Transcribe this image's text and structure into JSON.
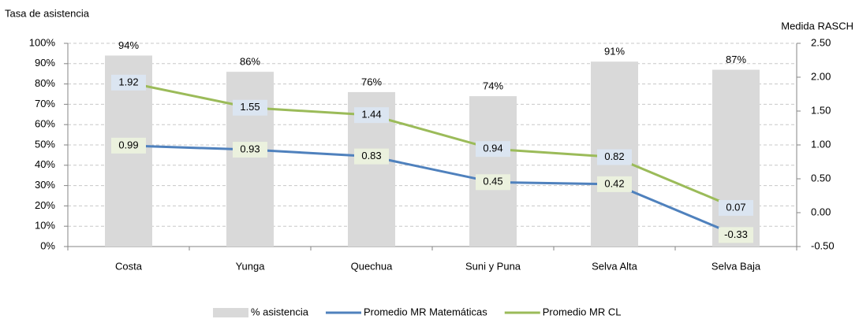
{
  "chart_data": {
    "type": "bar",
    "y_label": "Tasa de asistencia",
    "y2_label": "Medida RASCH",
    "categories": [
      "Costa",
      "Yunga",
      "Quechua",
      "Suni y Puna",
      "Selva Alta",
      "Selva Baja"
    ],
    "series": [
      {
        "name": "% asistencia",
        "type": "bar",
        "color": "#d9d9d9",
        "values": [
          94,
          86,
          76,
          74,
          91,
          87
        ],
        "value_labels": [
          "94%",
          "86%",
          "76%",
          "74%",
          "91%",
          "87%"
        ]
      },
      {
        "name": "Promedio MR Matemáticas",
        "type": "line",
        "axis": "y2",
        "color": "#4f81bd",
        "label_color": "#ebf1de",
        "values": [
          0.99,
          0.93,
          0.83,
          0.45,
          0.42,
          -0.33
        ]
      },
      {
        "name": "Promedio MR CL",
        "type": "line",
        "axis": "y2",
        "color": "#9bbb59",
        "label_color": "#dbe5f1",
        "values": [
          1.92,
          1.55,
          1.44,
          0.94,
          0.82,
          0.07
        ]
      }
    ],
    "ylim": [
      0,
      100
    ],
    "yticks": [
      {
        "value": 0,
        "label": "0%"
      },
      {
        "value": 10,
        "label": "10%"
      },
      {
        "value": 20,
        "label": "20%"
      },
      {
        "value": 30,
        "label": "30%"
      },
      {
        "value": 40,
        "label": "40%"
      },
      {
        "value": 50,
        "label": "50%"
      },
      {
        "value": 60,
        "label": "60%"
      },
      {
        "value": 70,
        "label": "70%"
      },
      {
        "value": 80,
        "label": "80%"
      },
      {
        "value": 90,
        "label": "90%"
      },
      {
        "value": 100,
        "label": "100%"
      }
    ],
    "y2lim": [
      -0.5,
      2.5
    ],
    "y2ticks": [
      {
        "value": -0.5,
        "label": "-0.50"
      },
      {
        "value": 0,
        "label": "0.00"
      },
      {
        "value": 0.5,
        "label": "0.50"
      },
      {
        "value": 1,
        "label": "1.00"
      },
      {
        "value": 1.5,
        "label": "1.50"
      },
      {
        "value": 2,
        "label": "2.00"
      },
      {
        "value": 2.5,
        "label": "2.50"
      }
    ],
    "grid": true
  }
}
